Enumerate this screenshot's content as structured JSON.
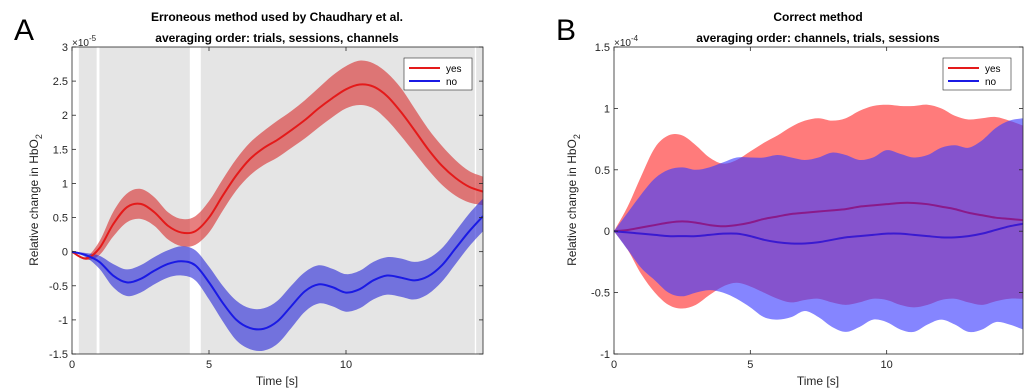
{
  "chart_data": [
    {
      "panel": "A",
      "type": "line",
      "title": "Erroneous method used by Chaudhary et al.",
      "subtitle": "averaging order: trials, sessions, channels",
      "xlabel": "Time [s]",
      "ylabel": "Relative change in HbO",
      "ylabel_sub": "2",
      "y_exponent": "×10",
      "y_exponent_power": "-5",
      "xlim": [
        0,
        15
      ],
      "ylim": [
        -1.5,
        3
      ],
      "xticks": [
        0,
        5,
        10
      ],
      "xtick_labels": [
        "0",
        "5",
        "10"
      ],
      "yticks": [
        -1.5,
        -1,
        -0.5,
        0,
        0.5,
        1,
        1.5,
        2,
        2.5,
        3
      ],
      "ytick_labels": [
        "-1.5",
        "-1",
        "-0.5",
        "0",
        "0.5",
        "1",
        "1.5",
        "2",
        "2.5",
        "3"
      ],
      "shaded_intervals": [
        [
          0.25,
          0.9
        ],
        [
          4.3,
          4.75
        ],
        [
          14.75,
          15
        ]
      ],
      "gap_intervals": [
        [
          0.9,
          4.3
        ],
        [
          4.75,
          14.75
        ]
      ],
      "legend": {
        "position": "top-right",
        "entries": [
          "yes",
          "no"
        ]
      },
      "series": [
        {
          "name": "yes",
          "color": "#e41a1a",
          "x": [
            0,
            0.5,
            1,
            1.5,
            2,
            2.5,
            3,
            3.5,
            4,
            4.5,
            5,
            5.5,
            6,
            6.5,
            7,
            7.5,
            8,
            8.5,
            9,
            9.5,
            10,
            10.5,
            11,
            11.5,
            12,
            12.5,
            13,
            13.5,
            14,
            14.5,
            15
          ],
          "mean": [
            0,
            -0.1,
            0.05,
            0.4,
            0.65,
            0.7,
            0.58,
            0.38,
            0.28,
            0.3,
            0.5,
            0.82,
            1.12,
            1.36,
            1.52,
            1.64,
            1.78,
            1.93,
            2.1,
            2.25,
            2.38,
            2.45,
            2.42,
            2.28,
            2.05,
            1.78,
            1.5,
            1.26,
            1.08,
            0.95,
            0.88
          ],
          "lower": [
            0,
            -0.12,
            -0.05,
            0.22,
            0.43,
            0.48,
            0.38,
            0.18,
            0.08,
            0.1,
            0.28,
            0.6,
            0.9,
            1.12,
            1.27,
            1.38,
            1.52,
            1.66,
            1.82,
            1.97,
            2.1,
            2.15,
            2.1,
            1.93,
            1.7,
            1.45,
            1.2,
            0.98,
            0.82,
            0.72,
            0.68
          ],
          "upper": [
            0,
            -0.08,
            0.15,
            0.58,
            0.85,
            0.92,
            0.8,
            0.58,
            0.48,
            0.52,
            0.74,
            1.06,
            1.36,
            1.6,
            1.77,
            1.92,
            2.06,
            2.22,
            2.4,
            2.58,
            2.72,
            2.8,
            2.76,
            2.62,
            2.4,
            2.1,
            1.8,
            1.55,
            1.34,
            1.18,
            1.1
          ]
        },
        {
          "name": "no",
          "color": "#1a1ae4",
          "x": [
            0,
            0.5,
            1,
            1.5,
            2,
            2.5,
            3,
            3.5,
            4,
            4.5,
            5,
            5.5,
            6,
            6.5,
            7,
            7.5,
            8,
            8.5,
            9,
            9.5,
            10,
            10.5,
            11,
            11.5,
            12,
            12.5,
            13,
            13.5,
            14,
            14.5,
            15
          ],
          "mean": [
            0,
            -0.05,
            -0.15,
            -0.35,
            -0.45,
            -0.4,
            -0.28,
            -0.18,
            -0.14,
            -0.2,
            -0.45,
            -0.75,
            -1.0,
            -1.12,
            -1.13,
            -1.02,
            -0.8,
            -0.58,
            -0.48,
            -0.52,
            -0.6,
            -0.55,
            -0.42,
            -0.35,
            -0.38,
            -0.42,
            -0.36,
            -0.2,
            0.05,
            0.3,
            0.52
          ],
          "lower": [
            0,
            -0.08,
            -0.25,
            -0.52,
            -0.65,
            -0.6,
            -0.48,
            -0.38,
            -0.35,
            -0.42,
            -0.7,
            -1.02,
            -1.3,
            -1.43,
            -1.45,
            -1.35,
            -1.12,
            -0.88,
            -0.76,
            -0.8,
            -0.88,
            -0.83,
            -0.7,
            -0.63,
            -0.66,
            -0.7,
            -0.62,
            -0.44,
            -0.18,
            0.08,
            0.3
          ],
          "upper": [
            0,
            -0.02,
            -0.06,
            -0.18,
            -0.26,
            -0.2,
            -0.08,
            0.02,
            0.08,
            0.02,
            -0.22,
            -0.5,
            -0.72,
            -0.83,
            -0.83,
            -0.72,
            -0.5,
            -0.3,
            -0.2,
            -0.25,
            -0.33,
            -0.28,
            -0.15,
            -0.08,
            -0.1,
            -0.15,
            -0.1,
            0.05,
            0.3,
            0.56,
            0.78
          ]
        }
      ]
    },
    {
      "panel": "B",
      "type": "line",
      "title": "Correct method",
      "subtitle": "averaging order: channels, trials, sessions",
      "xlabel": "Time [s]",
      "ylabel": "Relative change in HbO",
      "ylabel_sub": "2",
      "y_exponent": "×10",
      "y_exponent_power": "-4",
      "xlim": [
        0,
        15
      ],
      "ylim": [
        -1,
        1.5
      ],
      "xticks": [
        0,
        5,
        10
      ],
      "xtick_labels": [
        "0",
        "5",
        "10"
      ],
      "yticks": [
        -1,
        -0.5,
        0,
        0.5,
        1,
        1.5
      ],
      "ytick_labels": [
        "-1",
        "-0.5",
        "0",
        "0.5",
        "1",
        "1.5"
      ],
      "legend": {
        "position": "top-right",
        "entries": [
          "yes",
          "no"
        ]
      },
      "overlap_color": "#7d3cc8",
      "series": [
        {
          "name": "yes",
          "color": "#e41a1a",
          "band_color": "#ff7b7b",
          "x": [
            0,
            0.5,
            1,
            1.5,
            2,
            2.5,
            3,
            3.5,
            4,
            4.5,
            5,
            5.5,
            6,
            6.5,
            7,
            7.5,
            8,
            8.5,
            9,
            9.5,
            10,
            10.5,
            11,
            11.5,
            12,
            12.5,
            13,
            13.5,
            14,
            14.5,
            15
          ],
          "mean": [
            0,
            0.01,
            0.03,
            0.05,
            0.07,
            0.08,
            0.07,
            0.05,
            0.04,
            0.05,
            0.07,
            0.1,
            0.12,
            0.14,
            0.15,
            0.16,
            0.17,
            0.18,
            0.2,
            0.21,
            0.22,
            0.23,
            0.23,
            0.22,
            0.2,
            0.18,
            0.15,
            0.13,
            0.11,
            0.1,
            0.09
          ],
          "lower": [
            0,
            -0.15,
            -0.35,
            -0.5,
            -0.6,
            -0.63,
            -0.6,
            -0.52,
            -0.45,
            -0.42,
            -0.45,
            -0.5,
            -0.55,
            -0.58,
            -0.56,
            -0.55,
            -0.58,
            -0.6,
            -0.58,
            -0.55,
            -0.56,
            -0.6,
            -0.62,
            -0.6,
            -0.56,
            -0.55,
            -0.58,
            -0.6,
            -0.57,
            -0.55,
            -0.55
          ],
          "upper": [
            0,
            0.2,
            0.45,
            0.68,
            0.78,
            0.78,
            0.7,
            0.6,
            0.55,
            0.58,
            0.65,
            0.72,
            0.78,
            0.85,
            0.9,
            0.92,
            0.9,
            0.92,
            0.98,
            1.02,
            1.03,
            1.02,
            1.02,
            1.03,
            1.0,
            0.94,
            0.91,
            0.92,
            0.93,
            0.9,
            0.86
          ]
        },
        {
          "name": "no",
          "color": "#1a1ae4",
          "band_color": "#7b7bff",
          "x": [
            0,
            0.5,
            1,
            1.5,
            2,
            2.5,
            3,
            3.5,
            4,
            4.5,
            5,
            5.5,
            6,
            6.5,
            7,
            7.5,
            8,
            8.5,
            9,
            9.5,
            10,
            10.5,
            11,
            11.5,
            12,
            12.5,
            13,
            13.5,
            14,
            14.5,
            15
          ],
          "mean": [
            0,
            -0.01,
            -0.02,
            -0.03,
            -0.04,
            -0.04,
            -0.04,
            -0.03,
            -0.02,
            -0.02,
            -0.04,
            -0.07,
            -0.09,
            -0.1,
            -0.1,
            -0.09,
            -0.07,
            -0.05,
            -0.04,
            -0.03,
            -0.02,
            -0.02,
            -0.03,
            -0.04,
            -0.05,
            -0.05,
            -0.04,
            -0.02,
            0.01,
            0.04,
            0.06
          ],
          "lower": [
            0,
            -0.15,
            -0.3,
            -0.4,
            -0.5,
            -0.53,
            -0.5,
            -0.48,
            -0.5,
            -0.55,
            -0.62,
            -0.7,
            -0.72,
            -0.7,
            -0.65,
            -0.7,
            -0.78,
            -0.82,
            -0.78,
            -0.72,
            -0.74,
            -0.8,
            -0.82,
            -0.76,
            -0.72,
            -0.76,
            -0.82,
            -0.8,
            -0.74,
            -0.76,
            -0.8
          ],
          "upper": [
            0,
            0.15,
            0.3,
            0.43,
            0.5,
            0.52,
            0.5,
            0.52,
            0.56,
            0.6,
            0.6,
            0.6,
            0.62,
            0.6,
            0.58,
            0.6,
            0.64,
            0.62,
            0.58,
            0.6,
            0.66,
            0.63,
            0.6,
            0.62,
            0.68,
            0.7,
            0.68,
            0.74,
            0.84,
            0.9,
            0.92
          ]
        }
      ]
    }
  ]
}
